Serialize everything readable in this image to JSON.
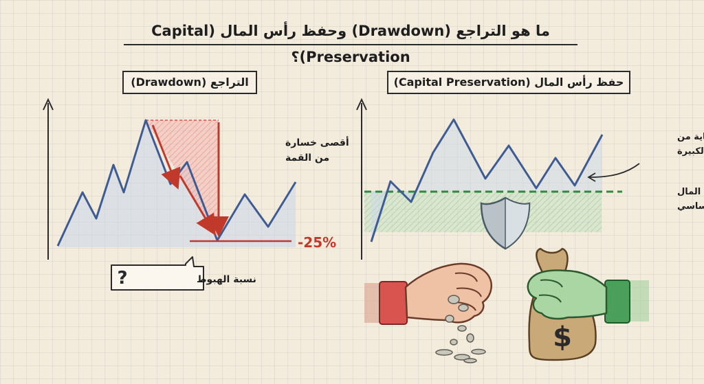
{
  "title": "ما هو التراجع (Drawdown) وحفظ رأس المال (Capital Preservation)؟",
  "left_panel": {
    "title": "التراجع (Drawdown)",
    "max_loss_label": [
      "أقصى خسارة",
      "من القمة"
    ],
    "drawdown_value": "-25%",
    "callout_label": "نسبة الهبوط",
    "callout_icon": "question-mark-icon"
  },
  "right_panel": {
    "title": "حفظ رأس المال (Capital Preservation)",
    "protection_label": [
      "الحماية من",
      "الخسائر الكبيرة"
    ],
    "capital_label": [
      "رأس المال",
      "الأساسي"
    ],
    "shield_icon": "shield-icon",
    "money_bag_symbol": "$"
  },
  "colors": {
    "line": "#3e5c93",
    "drawdown_red": "#c0392b",
    "capital_green": "#2e8b3e",
    "paper": "#f3ecdd"
  }
}
